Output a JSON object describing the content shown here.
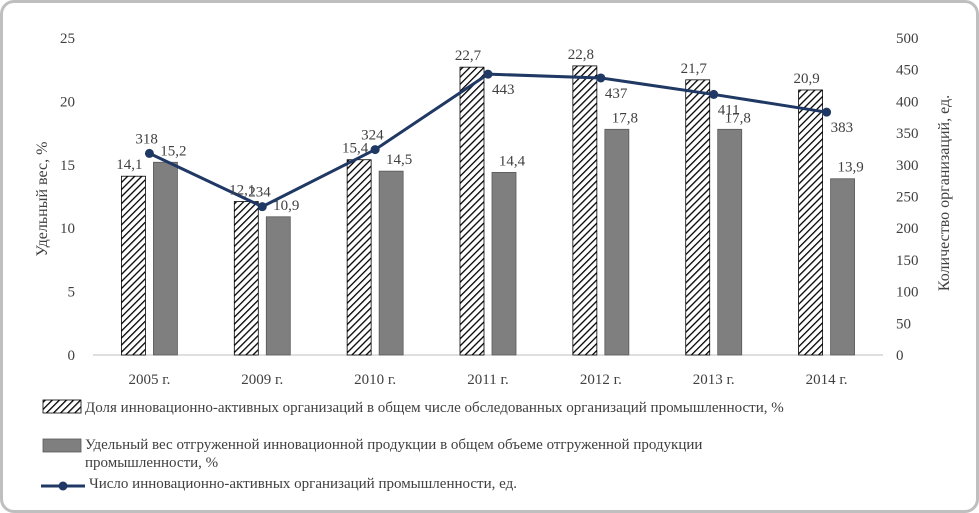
{
  "chart_data": {
    "type": "bar",
    "categories": [
      "2005 г.",
      "2009 г.",
      "2010 г.",
      "2011 г.",
      "2012 г.",
      "2013 г.",
      "2014 г."
    ],
    "ylabel": "Удельный вес, %",
    "y2label": "Количество организаций, ед.",
    "ylim": [
      0,
      25
    ],
    "yticks": [
      0,
      5,
      10,
      15,
      20,
      25
    ],
    "y2lim": [
      0,
      500
    ],
    "y2ticks": [
      0,
      50,
      100,
      150,
      200,
      250,
      300,
      350,
      400,
      450,
      500
    ],
    "grid": false,
    "legend_position": "bottom",
    "series": [
      {
        "name": "Доля инновационно-активных  организаций в общем числе обследованных  организаций промышленности, %",
        "kind": "bar",
        "pattern": "diagonal-hatch",
        "axis": "left",
        "values": [
          14.1,
          12.1,
          15.4,
          22.7,
          22.8,
          21.7,
          20.9
        ],
        "labels": [
          "14,1",
          "12,1",
          "15,4",
          "22,7",
          "22,8",
          "21,7",
          "20,9"
        ]
      },
      {
        "name_line1": "Удельный вес отгруженной инновационной  продукции в общем  объеме отгруженной продукции",
        "name_line2": "промышленности, %",
        "kind": "bar",
        "color": "#7f7f7f",
        "axis": "left",
        "values": [
          15.2,
          10.9,
          14.5,
          14.4,
          17.8,
          17.8,
          13.9
        ],
        "labels": [
          "15,2",
          "10,9",
          "14,5",
          "14,4",
          "17,8",
          "17,8",
          "13,9"
        ]
      },
      {
        "name": "Число инновационно-активных  организаций промышленности, ед.",
        "kind": "line",
        "color": "#1f3864",
        "axis": "right",
        "values": [
          318,
          234,
          324,
          443,
          437,
          411,
          383
        ],
        "labels": [
          "318",
          "234",
          "324",
          "443",
          "437",
          "411",
          "383"
        ]
      }
    ]
  }
}
